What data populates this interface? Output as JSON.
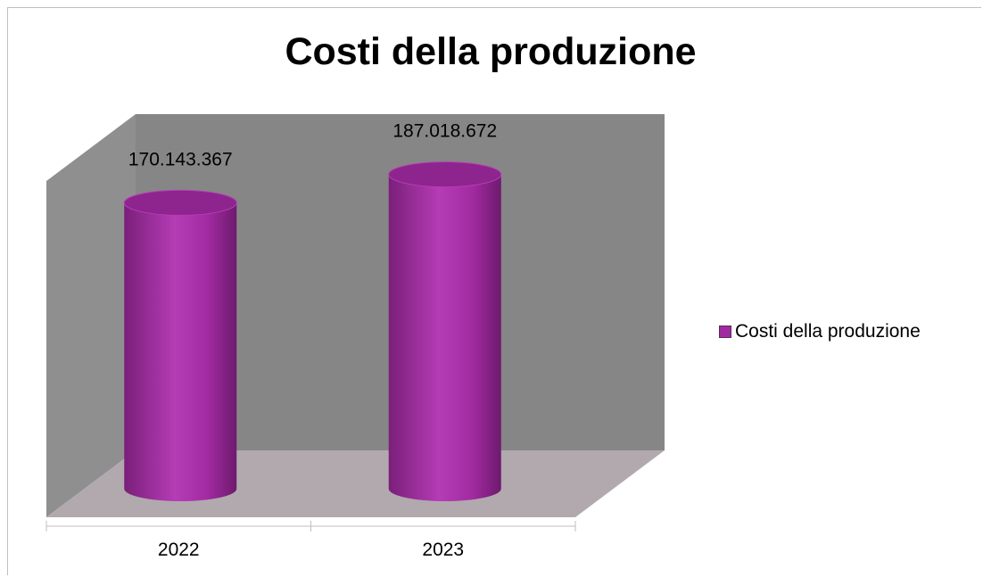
{
  "chart_data": {
    "type": "bar",
    "title": "Costi della produzione",
    "categories": [
      "2022",
      "2023"
    ],
    "series": [
      {
        "name": "Costi della produzione",
        "values": [
          170143367,
          187018672
        ],
        "labels": [
          "170.143.367",
          "187.018.672"
        ]
      }
    ],
    "ylim": [
      0,
      190000000
    ],
    "legend_position": "right",
    "style": "3d-cylinder",
    "colors": {
      "series": "#a12aa1",
      "back_wall": "#868686",
      "floor": "#b1a9ae",
      "axis": "#bfbfbf"
    }
  }
}
